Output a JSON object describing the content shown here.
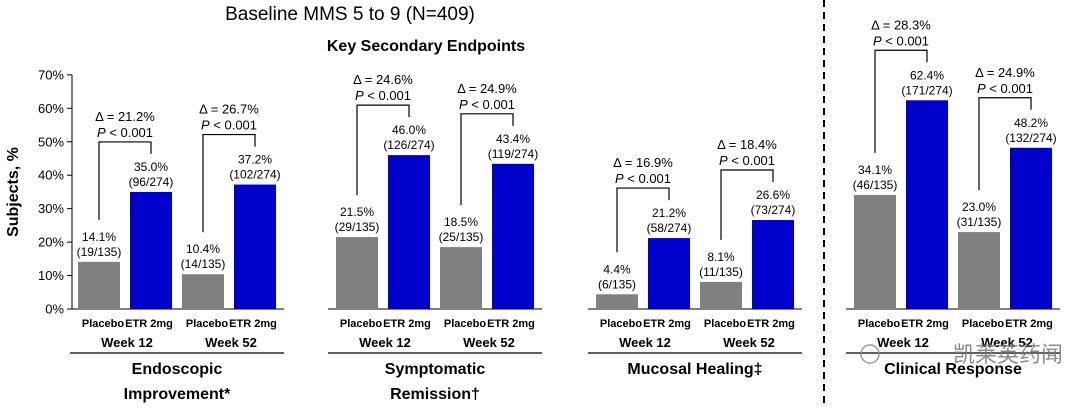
{
  "header": {
    "title": "Baseline MMS 5 to 9 (N=409)",
    "subtitle": "Key Secondary Endpoints"
  },
  "watermark": {
    "text": "凯莱英药闻"
  },
  "chart_data": {
    "type": "bar",
    "ylabel": "Subjects, %",
    "ylim": [
      0,
      70
    ],
    "yticks": [
      "0%",
      "10%",
      "20%",
      "30%",
      "40%",
      "50%",
      "60%",
      "70%"
    ],
    "grid": false,
    "legend": "none",
    "colors": {
      "placebo": "#808080",
      "etr": "#0000cc"
    },
    "series_labels": {
      "placebo": "Placebo",
      "etr": "ETR 2mg"
    },
    "groups": [
      {
        "endpoint": "Endoscopic Improvement*",
        "endpoint_lines": [
          "Endoscopic",
          "Improvement*"
        ],
        "timepoints": [
          {
            "week": "Week 12",
            "placebo": 14.1,
            "placebo_label": [
              "14.1%",
              "(19/135)"
            ],
            "etr": 35.0,
            "etr_label": [
              "35.0%",
              "(96/274)"
            ],
            "delta": "Δ = 21.2%",
            "p": "P < 0.001"
          },
          {
            "week": "Week 52",
            "placebo": 10.4,
            "placebo_label": [
              "10.4%",
              "(14/135)"
            ],
            "etr": 37.2,
            "etr_label": [
              "37.2%",
              "(102/274)"
            ],
            "delta": "Δ = 26.7%",
            "p": "P < 0.001"
          }
        ]
      },
      {
        "endpoint": "Symptomatic Remission†",
        "endpoint_lines": [
          "Symptomatic",
          "Remission†"
        ],
        "timepoints": [
          {
            "week": "Week 12",
            "placebo": 21.5,
            "placebo_label": [
              "21.5%",
              "(29/135)"
            ],
            "etr": 46.0,
            "etr_label": [
              "46.0%",
              "(126/274)"
            ],
            "delta": "Δ = 24.6%",
            "p": "P < 0.001"
          },
          {
            "week": "Week 52",
            "placebo": 18.5,
            "placebo_label": [
              "18.5%",
              "(25/135)"
            ],
            "etr": 43.4,
            "etr_label": [
              "43.4%",
              "(119/274)"
            ],
            "delta": "Δ = 24.9%",
            "p": "P < 0.001"
          }
        ]
      },
      {
        "endpoint": "Mucosal Healing‡",
        "endpoint_lines": [
          "Mucosal Healing‡"
        ],
        "timepoints": [
          {
            "week": "Week 12",
            "placebo": 4.4,
            "placebo_label": [
              "4.4%",
              "(6/135)"
            ],
            "etr": 21.2,
            "etr_label": [
              "21.2%",
              "(58/274)"
            ],
            "delta": "Δ = 16.9%",
            "p": "P < 0.001"
          },
          {
            "week": "Week 52",
            "placebo": 8.1,
            "placebo_label": [
              "8.1%",
              "(11/135)"
            ],
            "etr": 26.6,
            "etr_label": [
              "26.6%",
              "(73/274)"
            ],
            "delta": "Δ = 18.4%",
            "p": "P < 0.001"
          }
        ]
      },
      {
        "endpoint": "Clinical Response",
        "endpoint_lines": [
          "Clinical Response"
        ],
        "timepoints": [
          {
            "week": "Week 12",
            "placebo": 34.1,
            "placebo_label": [
              "34.1%",
              "(46/135)"
            ],
            "etr": 62.4,
            "etr_label": [
              "62.4%",
              "(171/274)"
            ],
            "delta": "Δ = 28.3%",
            "p": "P < 0.001"
          },
          {
            "week": "Week 52",
            "placebo": 23.0,
            "placebo_label": [
              "23.0%",
              "(31/135)"
            ],
            "etr": 48.2,
            "etr_label": [
              "48.2%",
              "(132/274)"
            ],
            "delta": "Δ = 24.9%",
            "p": "P < 0.001"
          }
        ]
      }
    ]
  }
}
